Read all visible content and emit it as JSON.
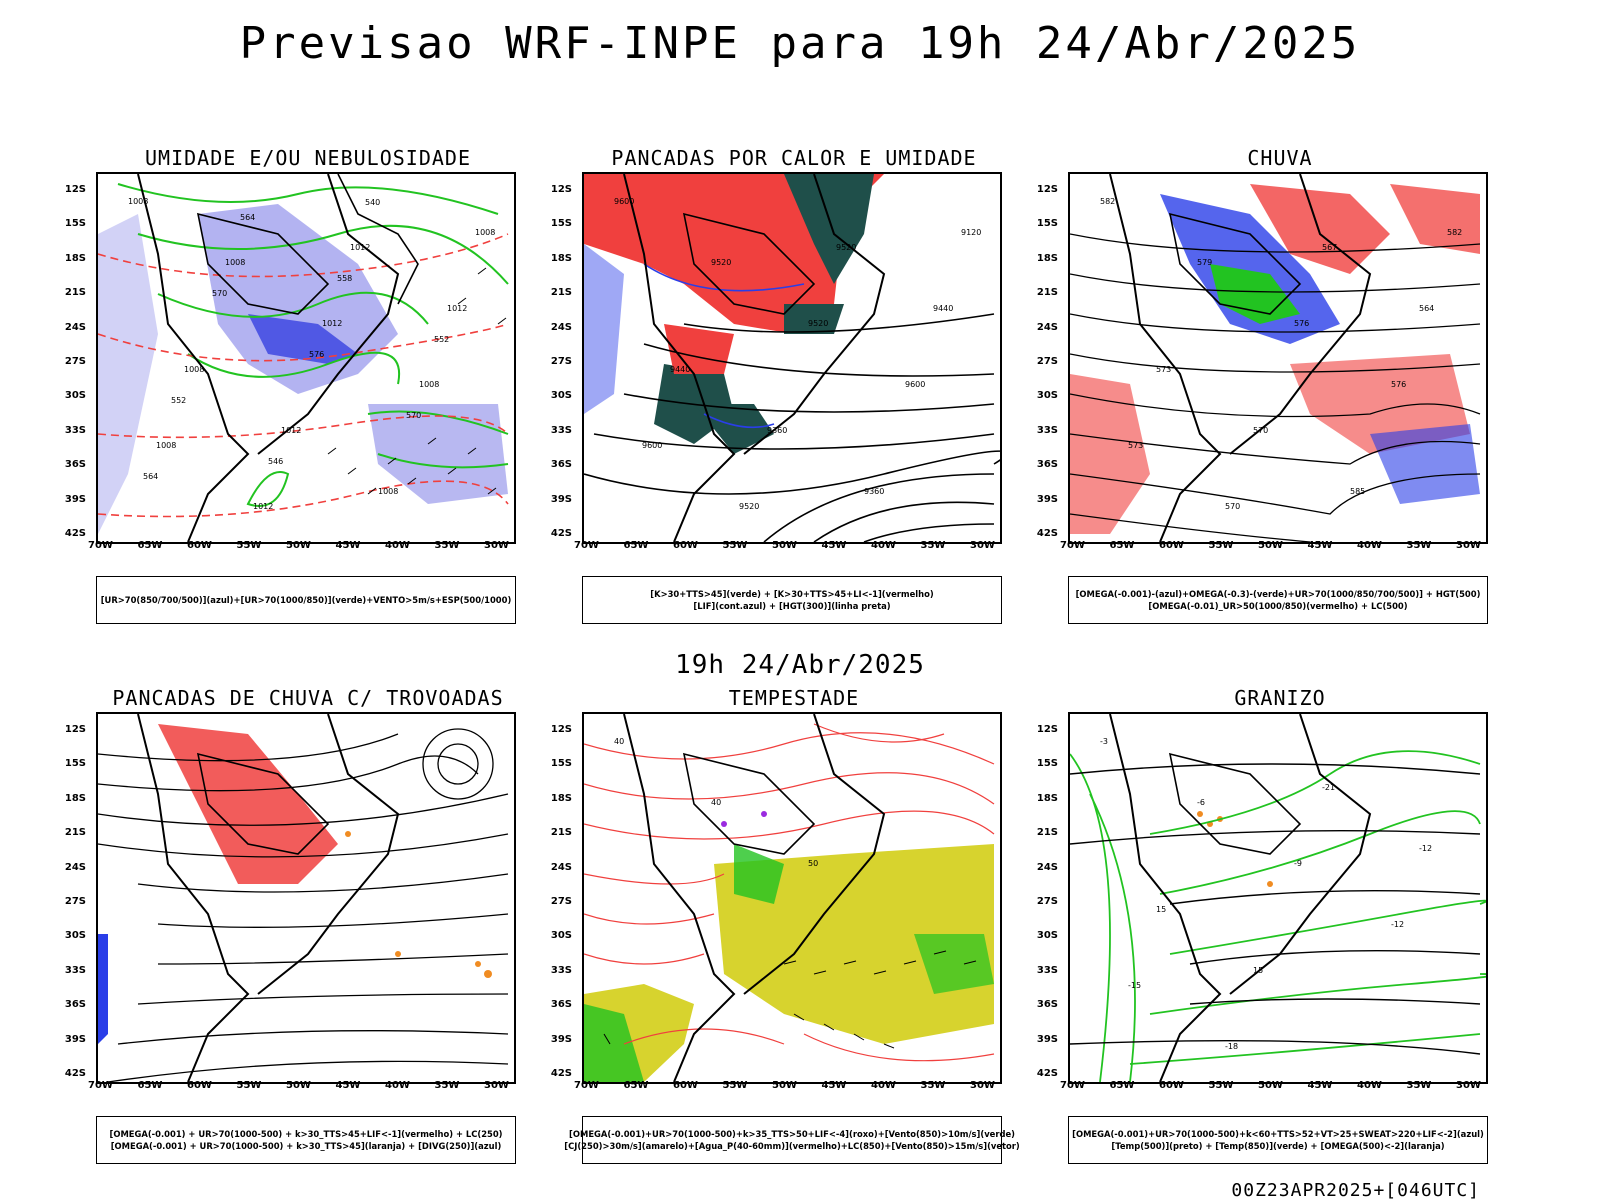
{
  "main_title": "Previsao WRF-INPE  para 19h 24/Abr/2025",
  "mid_title": "19h 24/Abr/2025",
  "footer": "00Z23APR2025+[046UTC]",
  "lat_labels": [
    "12S",
    "15S",
    "18S",
    "21S",
    "24S",
    "27S",
    "30S",
    "33S",
    "36S",
    "39S",
    "42S"
  ],
  "lon_labels": [
    "70W",
    "65W",
    "60W",
    "55W",
    "50W",
    "45W",
    "40W",
    "35W",
    "30W"
  ],
  "colors": {
    "red": "#f0403e",
    "green": "#22c321",
    "blue": "#2a3ee8",
    "lavender": "#a6a6ee",
    "darkteal": "#1f4f4a",
    "yellow": "#d7d32e",
    "orange": "#f08c22",
    "purple": "#9b2be0"
  },
  "panels": [
    {
      "title": "UMIDADE E/OU NEBULOSIDADE",
      "legend": [
        "[UR>70(850/700/500)](azul)+[UR>70(1000/850)](verde)+VENTO>5m/s+ESP(500/1000)"
      ],
      "contour_labels": [
        "1008",
        "1008",
        "1012",
        "1008",
        "1008",
        "1012",
        "1012",
        "1012",
        "1008",
        "1012",
        "1008",
        "1008",
        "570",
        "576",
        "570",
        "564",
        "564",
        "558",
        "552",
        "552",
        "546",
        "540"
      ]
    },
    {
      "title": "PANCADAS POR CALOR E UMIDADE",
      "legend": [
        "[K>30+TTS>45](verde) + [K>30+TTS>45+LI<-1](vermelho)",
        "[LIF](cont.azul) + [HGT(300)](linha preta)"
      ],
      "contour_labels": [
        "9600",
        "9520",
        "9520",
        "9600",
        "9600",
        "9520",
        "9520",
        "9440",
        "9440",
        "9360",
        "9360",
        "9120"
      ]
    },
    {
      "title": "CHUVA",
      "legend": [
        "[OMEGA(-0.001)-(azul)+OMEGA(-0.3)-(verde)+UR>70(1000/850/700/500)] + HGT(500)",
        "[OMEGA(-0.01)_UR>50(1000/850)(vermelho) + LC(500)"
      ],
      "contour_labels": [
        "582",
        "579",
        "576",
        "576",
        "573",
        "570",
        "567",
        "564",
        "573",
        "570",
        "585",
        "582"
      ]
    },
    {
      "title": "PANCADAS DE CHUVA C/ TROVOADAS",
      "legend": [
        "[OMEGA(-0.001) + UR>70(1000-500) + k>30_TTS>45+LIF<-1](vermelho) + LC(250)",
        "[OMEGA(-0.001) + UR>70(1000-500) + k>30_TTS>45](laranja) + [DIVG(250)](azul)"
      ],
      "contour_labels": []
    },
    {
      "title": "TEMPESTADE",
      "legend": [
        "[OMEGA(-0.001)+UR>70(1000-500)+k>35_TTS>50+LIF<-4](roxo)+[Vento(850)>10m/s](verde)",
        "[CJ(250)>30m/s](amarelo)+[Agua_P(40-60mm)](vermelho)+LC(850)+[Vento(850)>15m/s](vetor)"
      ],
      "contour_labels": [
        "40",
        "40",
        "50"
      ]
    },
    {
      "title": "GRANIZO",
      "legend": [
        "[OMEGA(-0.001)+UR>70(1000-500)+k<60+TTS>52+VT>25+SWEAT>220+LIF<-2](azul)",
        "[Temp(500)](preto) + [Temp(850)](verde) + [OMEGA(500)<-2](laranja)"
      ],
      "contour_labels": [
        "-3",
        "-6",
        "-9",
        "-12",
        "-15",
        "-18",
        "-21",
        "-12",
        "15",
        "15"
      ]
    }
  ]
}
